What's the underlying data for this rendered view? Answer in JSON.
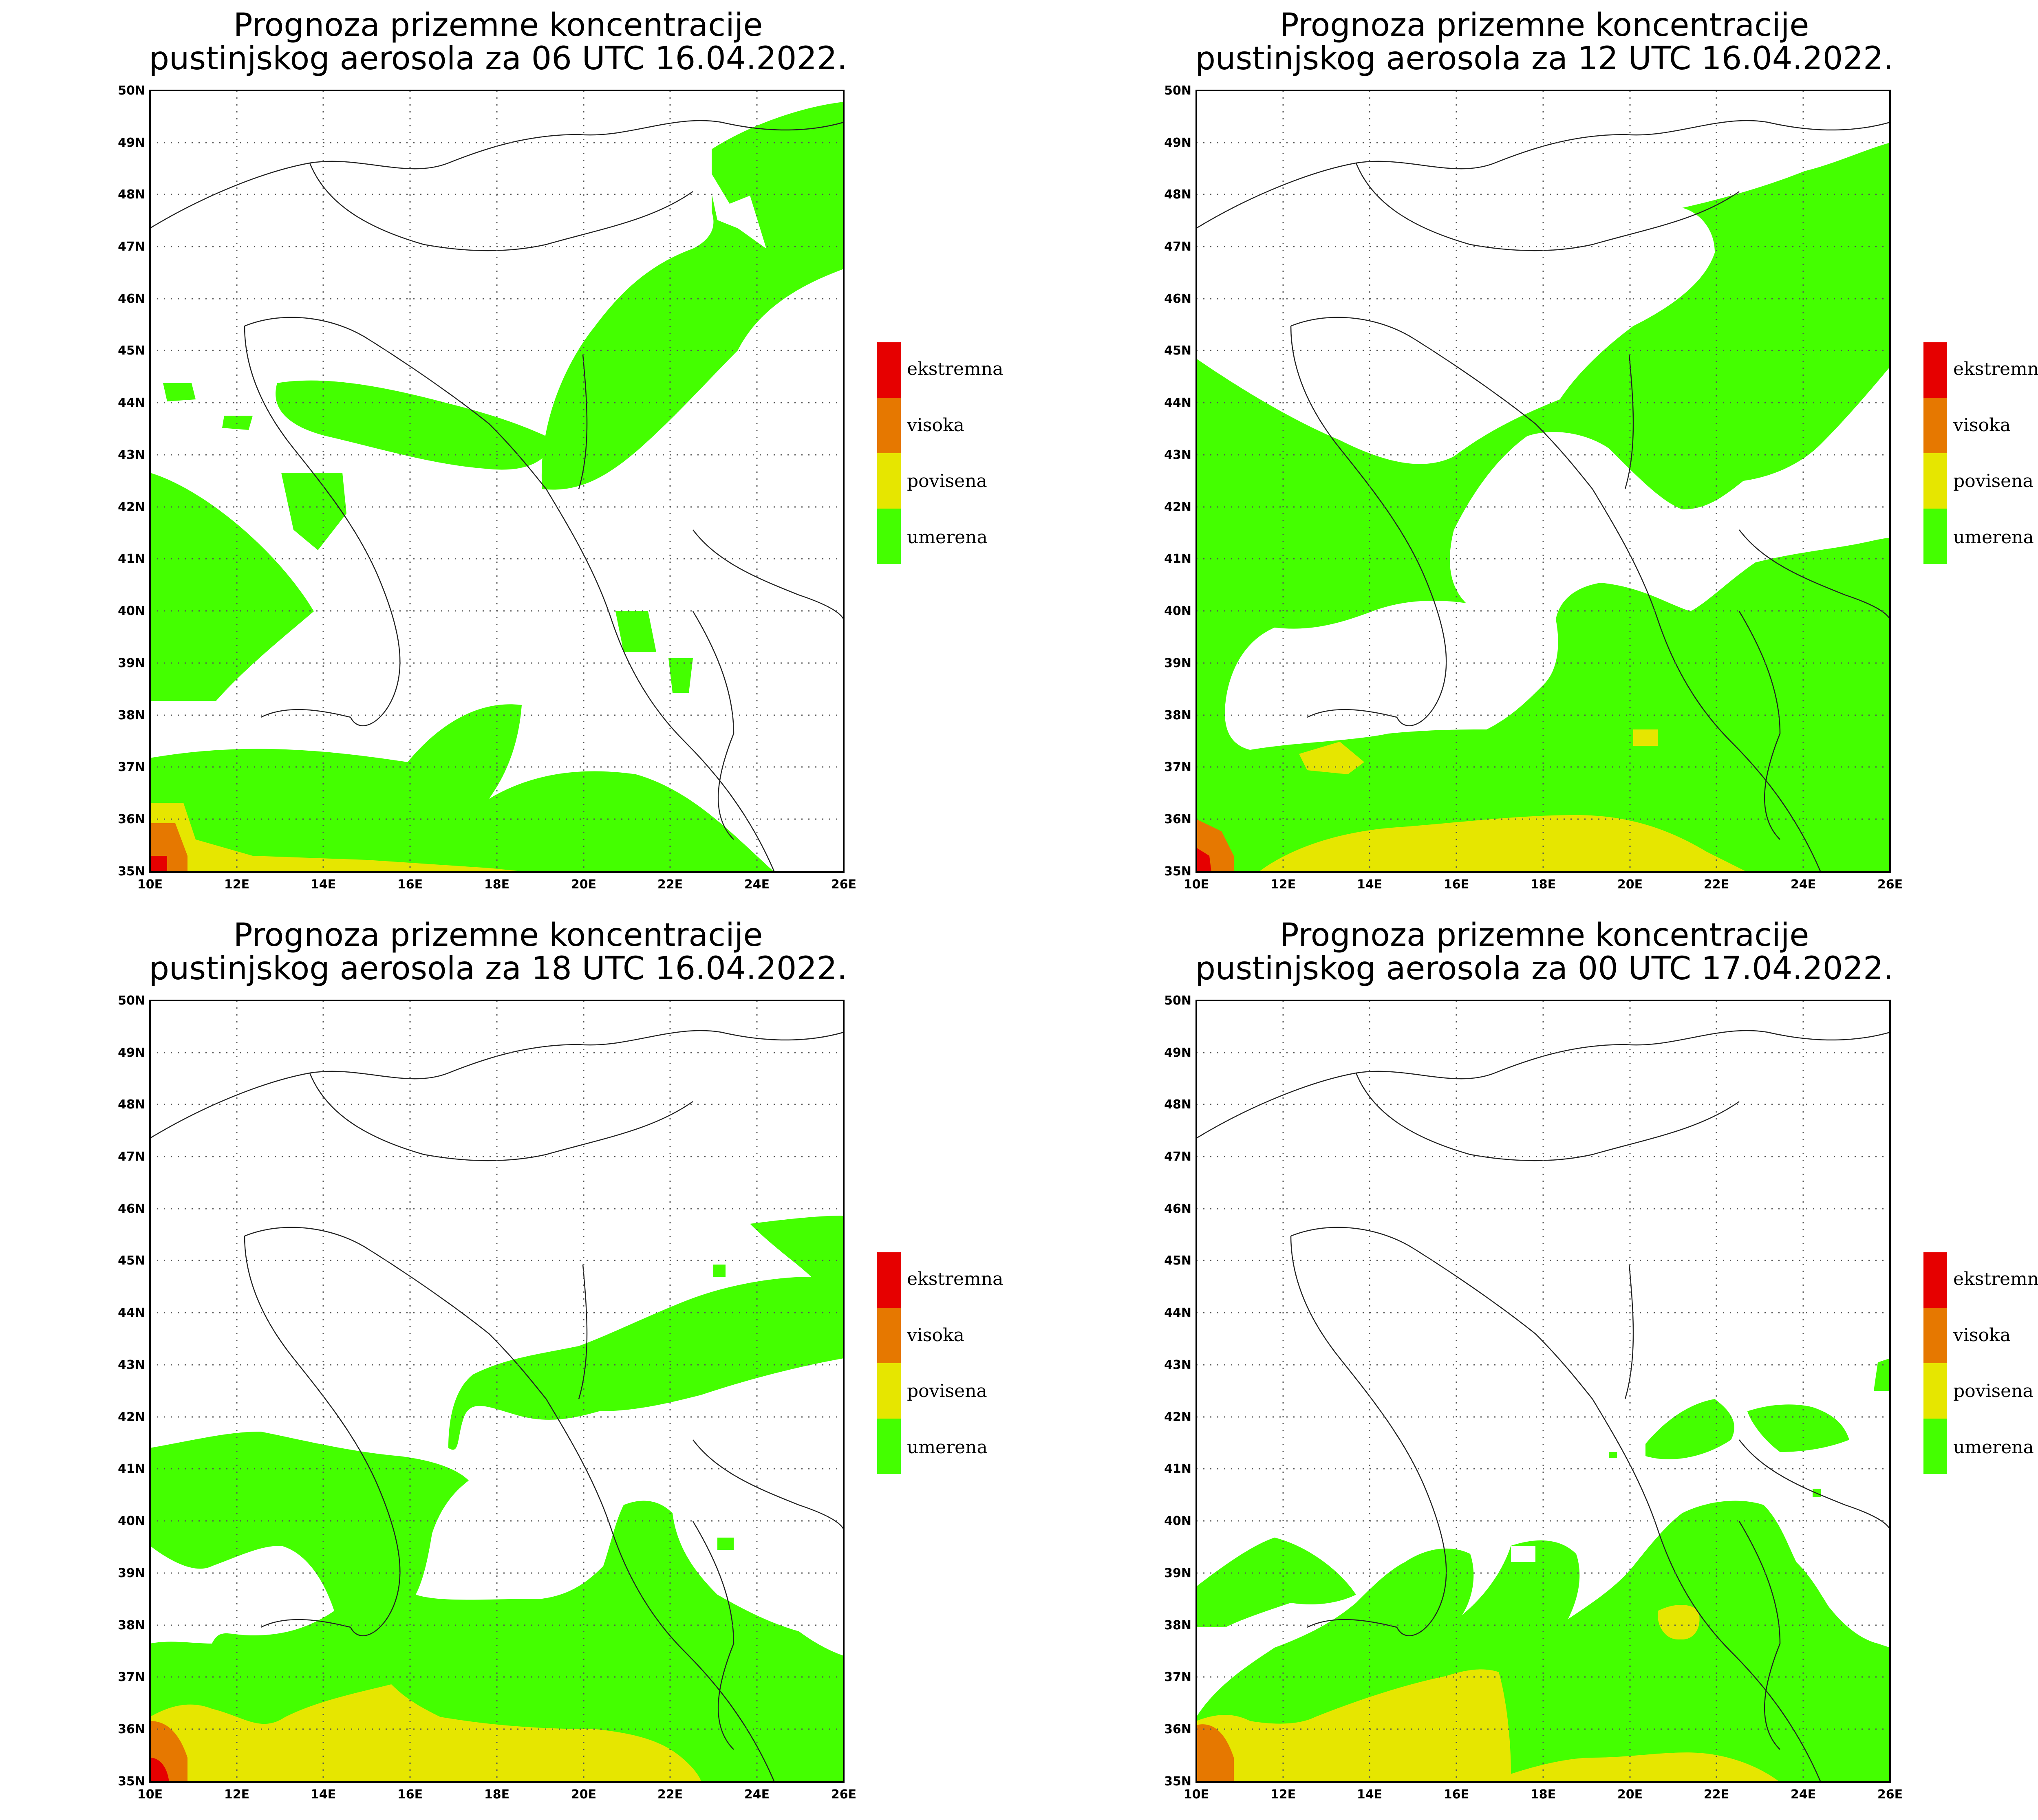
{
  "colors": {
    "umerena": "#44ff00",
    "povisena": "#e6e600",
    "visoka": "#e67800",
    "ekstremna": "#e60000"
  },
  "axes": {
    "y_labels": [
      "50N",
      "49N",
      "48N",
      "47N",
      "46N",
      "45N",
      "44N",
      "43N",
      "42N",
      "41N",
      "40N",
      "39N",
      "38N",
      "37N",
      "36N",
      "35N"
    ],
    "x_labels": [
      "10E",
      "12E",
      "14E",
      "16E",
      "18E",
      "20E",
      "22E",
      "24E",
      "26E"
    ]
  },
  "legend": [
    {
      "label": "ekstremna",
      "color": "#e60000"
    },
    {
      "label": "visoka",
      "color": "#e67800"
    },
    {
      "label": "povisena",
      "color": "#e6e600"
    },
    {
      "label": "umerena",
      "color": "#44ff00"
    }
  ],
  "panels": [
    {
      "title_line1": "Prognoza prizemne koncentracije",
      "title_line2": "pustinjskog aerosola za 06 UTC 16.04.2022."
    },
    {
      "title_line1": "Prognoza prizemne koncentracije",
      "title_line2": "pustinjskog aerosola za 12 UTC 16.04.2022."
    },
    {
      "title_line1": "Prognoza prizemne koncentracije",
      "title_line2": "pustinjskog aerosola za 18 UTC 16.04.2022."
    },
    {
      "title_line1": "Prognoza prizemne koncentracije",
      "title_line2": "pustinjskog aerosola za 00 UTC 17.04.2022."
    }
  ]
}
